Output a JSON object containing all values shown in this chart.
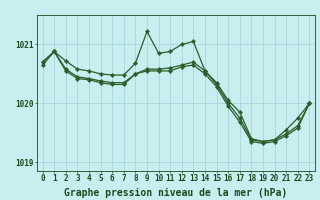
{
  "xlabel": "Graphe pression niveau de la mer (hPa)",
  "hours": [
    0,
    1,
    2,
    3,
    4,
    5,
    6,
    7,
    8,
    9,
    10,
    11,
    12,
    13,
    14,
    15,
    16,
    17,
    18,
    19,
    20,
    21,
    22,
    23
  ],
  "line1": [
    1020.7,
    1020.88,
    1020.72,
    1020.58,
    1020.55,
    1020.5,
    1020.48,
    1020.48,
    1020.68,
    1021.22,
    1020.85,
    1020.88,
    1021.0,
    1021.05,
    1020.55,
    1020.35,
    1020.05,
    1019.85,
    1019.4,
    1019.35,
    1019.38,
    1019.55,
    1019.75,
    1020.0
  ],
  "line2": [
    1020.7,
    1020.88,
    1020.58,
    1020.45,
    1020.42,
    1020.38,
    1020.35,
    1020.35,
    1020.5,
    1020.58,
    1020.58,
    1020.6,
    1020.65,
    1020.7,
    1020.55,
    1020.32,
    1020.0,
    1019.75,
    1019.38,
    1019.35,
    1019.38,
    1019.48,
    1019.62,
    1020.0
  ],
  "line3": [
    1020.65,
    1020.88,
    1020.55,
    1020.42,
    1020.4,
    1020.35,
    1020.32,
    1020.32,
    1020.5,
    1020.55,
    1020.55,
    1020.55,
    1020.62,
    1020.65,
    1020.5,
    1020.28,
    1019.95,
    1019.68,
    1019.35,
    1019.32,
    1019.35,
    1019.45,
    1019.58,
    1020.0
  ],
  "ylim": [
    1018.85,
    1021.5
  ],
  "yticks": [
    1019.0,
    1020.0,
    1021.0
  ],
  "bg_color": "#c8eef0",
  "line_color": "#2a5e2a",
  "grid_color": "#a8d8da",
  "text_color": "#1a4a1a",
  "marker": "D",
  "markersize": 2.2,
  "linewidth": 0.9,
  "xlabel_fontsize": 7.0,
  "tick_fontsize": 5.5
}
